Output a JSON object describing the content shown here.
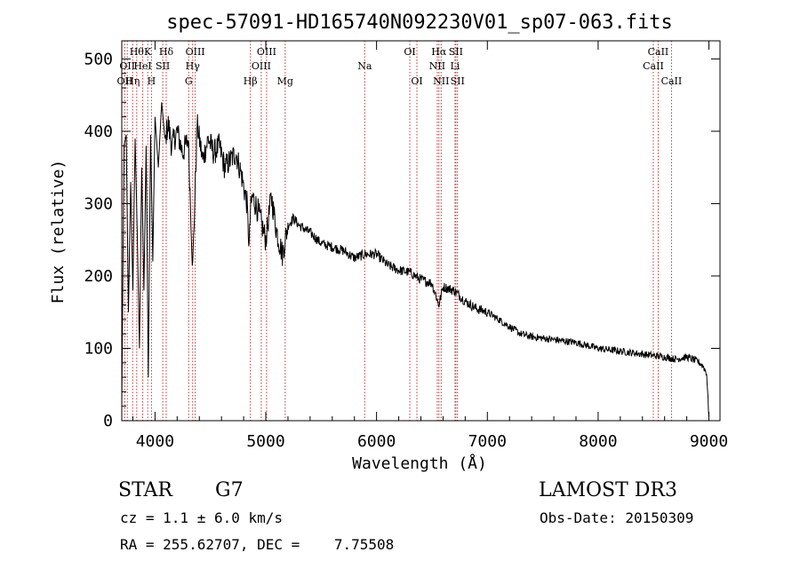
{
  "chart_data": {
    "type": "line",
    "title": "spec-57091-HD165740N092230V01_sp07-063.fits",
    "xlabel": "Wavelength (Å)",
    "ylabel": "Flux (relative)",
    "xlim": [
      3700,
      9100
    ],
    "ylim": [
      0,
      525
    ],
    "xticks": [
      4000,
      5000,
      6000,
      7000,
      8000,
      9000
    ],
    "yticks": [
      0,
      100,
      200,
      300,
      400,
      500
    ],
    "line_color": "#000000",
    "marker_color": "#cc3333",
    "series": [
      {
        "name": "flux",
        "x": [
          3700,
          3720,
          3740,
          3760,
          3780,
          3800,
          3820,
          3840,
          3860,
          3880,
          3900,
          3920,
          3940,
          3960,
          3980,
          4000,
          4030,
          4060,
          4090,
          4120,
          4150,
          4200,
          4250,
          4300,
          4320,
          4340,
          4380,
          4430,
          4480,
          4530,
          4580,
          4630,
          4680,
          4730,
          4780,
          4830,
          4850,
          4861,
          4880,
          4930,
          5000,
          5050,
          5100,
          5150,
          5200,
          5250,
          5300,
          5400,
          5500,
          5600,
          5700,
          5800,
          5900,
          6000,
          6100,
          6200,
          6300,
          6400,
          6500,
          6563,
          6600,
          6700,
          6800,
          6900,
          7000,
          7100,
          7200,
          7300,
          7400,
          7600,
          7800,
          8000,
          8200,
          8400,
          8500,
          8600,
          8700,
          8800,
          8900,
          8950,
          8980,
          9000
        ],
        "y": [
          20,
          380,
          395,
          150,
          330,
          180,
          390,
          260,
          100,
          350,
          180,
          380,
          60,
          395,
          220,
          420,
          350,
          440,
          390,
          410,
          380,
          400,
          370,
          390,
          300,
          210,
          410,
          360,
          390,
          370,
          380,
          350,
          360,
          370,
          340,
          300,
          240,
          290,
          310,
          290,
          250,
          310,
          260,
          230,
          270,
          280,
          270,
          260,
          245,
          240,
          235,
          225,
          230,
          230,
          215,
          208,
          205,
          195,
          190,
          160,
          185,
          180,
          165,
          155,
          150,
          140,
          130,
          120,
          116,
          112,
          108,
          100,
          96,
          92,
          90,
          88,
          85,
          88,
          82,
          75,
          65,
          5
        ]
      }
    ],
    "line_markers": [
      {
        "wl": 3727,
        "labels": [
          "OII"
        ],
        "row": 2
      },
      {
        "wl": 3750,
        "labels": [
          "OII"
        ],
        "row": 1
      },
      {
        "wl": 3798,
        "labels": [
          "Hη"
        ],
        "row": 2
      },
      {
        "wl": 3835,
        "labels": [
          "Hθ"
        ],
        "row": 0
      },
      {
        "wl": 3889,
        "labels": [
          "HeI"
        ],
        "row": 1
      },
      {
        "wl": 3934,
        "labels": [
          "K"
        ],
        "row": 0
      },
      {
        "wl": 3968,
        "labels": [
          "H"
        ],
        "row": 2
      },
      {
        "wl": 4070,
        "labels": [
          "SII"
        ],
        "row": 1
      },
      {
        "wl": 4101,
        "labels": [
          "Hδ"
        ],
        "row": 0
      },
      {
        "wl": 4304,
        "labels": [
          "G"
        ],
        "row": 2
      },
      {
        "wl": 4340,
        "labels": [
          "Hγ"
        ],
        "row": 1
      },
      {
        "wl": 4363,
        "labels": [
          "OIII"
        ],
        "row": 0
      },
      {
        "wl": 4861,
        "labels": [
          "Hβ"
        ],
        "row": 2
      },
      {
        "wl": 4959,
        "labels": [
          "OIII"
        ],
        "row": 1
      },
      {
        "wl": 5007,
        "labels": [
          "OIII"
        ],
        "row": 0
      },
      {
        "wl": 5175,
        "labels": [
          "Mg"
        ],
        "row": 2
      },
      {
        "wl": 5893,
        "labels": [
          "Na"
        ],
        "row": 1
      },
      {
        "wl": 6300,
        "labels": [
          "OI"
        ],
        "row": 0
      },
      {
        "wl": 6364,
        "labels": [
          "OI"
        ],
        "row": 2
      },
      {
        "wl": 6548,
        "labels": [
          "NII"
        ],
        "row": 1
      },
      {
        "wl": 6563,
        "labels": [
          "Hα"
        ],
        "row": 0
      },
      {
        "wl": 6583,
        "labels": [
          "NII"
        ],
        "row": 2
      },
      {
        "wl": 6708,
        "labels": [
          "Li"
        ],
        "row": 1
      },
      {
        "wl": 6716,
        "labels": [
          "SII"
        ],
        "row": 0
      },
      {
        "wl": 6731,
        "labels": [
          "SII"
        ],
        "row": 2
      },
      {
        "wl": 8498,
        "labels": [
          "CaII"
        ],
        "row": 1
      },
      {
        "wl": 8542,
        "labels": [
          "CaII"
        ],
        "row": 0
      },
      {
        "wl": 8662,
        "labels": [
          "CaII"
        ],
        "row": 2
      }
    ]
  },
  "info": {
    "object_type": "STAR",
    "subclass": "G7",
    "survey": "LAMOST DR3",
    "cz": "cz = 1.1 ± 6.0 km/s",
    "obs_date": "Obs-Date: 20150309",
    "coords": "RA = 255.62707, DEC =    7.75508"
  }
}
